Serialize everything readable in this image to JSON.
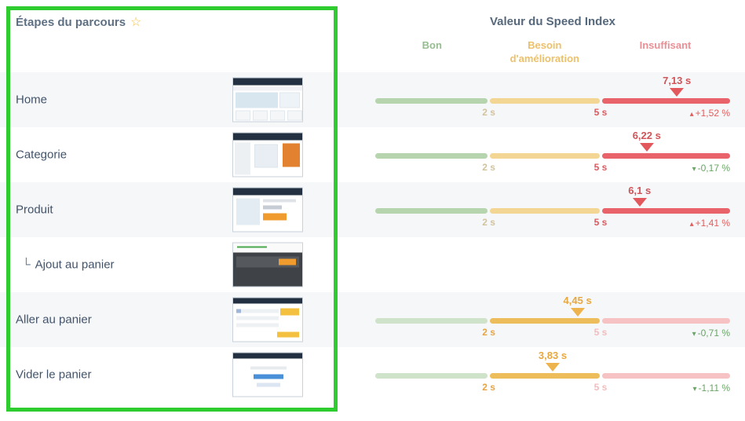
{
  "header": {
    "left_title": "Étapes du parcours",
    "star_icon": "☆",
    "right_title": "Valeur du Speed Index",
    "zones": {
      "good": "Bon",
      "needs_improvement": "Besoin d'amélioration",
      "insufficient": "Insuffisant"
    }
  },
  "scale": {
    "tick_good_max": "2 s",
    "tick_mid_max": "5 s"
  },
  "rows": [
    {
      "label": "Home",
      "value": "7,13 s",
      "marker_style": "left:85%",
      "delta_arrow": "▴",
      "delta": "+1,52 %",
      "trend": "up",
      "zone": "insufficient"
    },
    {
      "label": "Categorie",
      "value": "6,22 s",
      "marker_style": "left:76.5%",
      "delta_arrow": "▾",
      "delta": "-0,17 %",
      "trend": "down",
      "zone": "insufficient"
    },
    {
      "label": "Produit",
      "value": "6,1 s",
      "marker_style": "left:74.5%",
      "delta_arrow": "▴",
      "delta": "+1,41 %",
      "trend": "up",
      "zone": "insufficient"
    },
    {
      "prefix": "└",
      "label": "Ajout au panier",
      "zone": "none"
    },
    {
      "label": "Aller au panier",
      "value": "4,45 s",
      "marker_style": "left:57%",
      "delta_arrow": "▾",
      "delta": "-0,71 %",
      "trend": "down",
      "zone": "needs_improvement"
    },
    {
      "label": "Vider le panier",
      "value": "3,83 s",
      "marker_style": "left:50%",
      "delta_arrow": "▾",
      "delta": "-1,11 %",
      "trend": "down",
      "zone": "needs_improvement"
    }
  ],
  "colors": {
    "good": "#b6d4ae",
    "needs_improvement": "#eebd5b",
    "insufficient": "#e8646a",
    "trend_up": "#e0605f",
    "trend_down": "#6ba567",
    "highlight_box": "#2fcc2f",
    "row_stripe": "#f5f7f9"
  }
}
